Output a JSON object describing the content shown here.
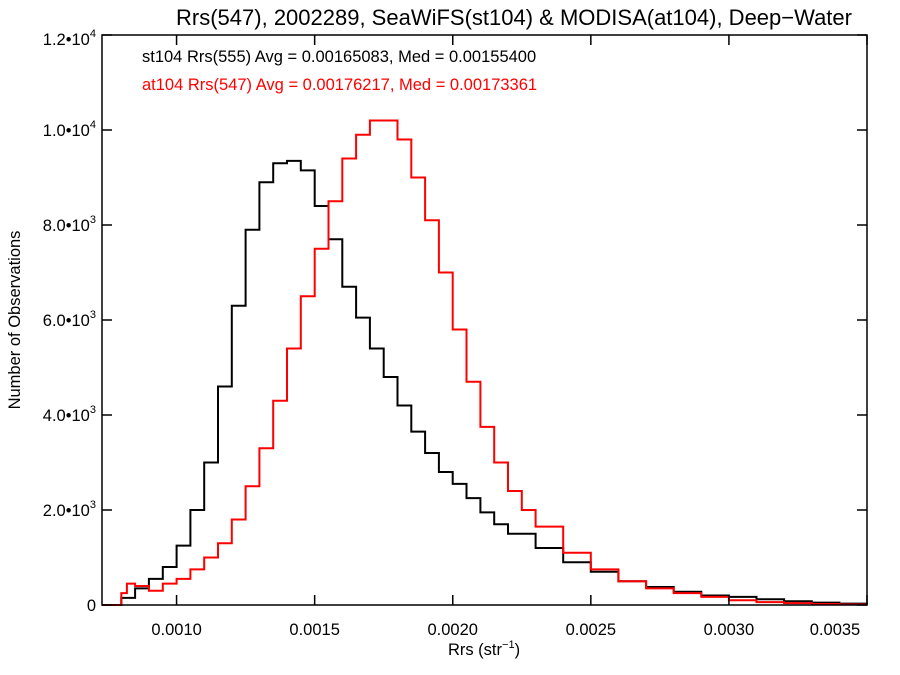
{
  "chart_data": {
    "type": "line",
    "title": "Rrs(547), 2002289, SeaWiFS(st104) & MODISA(at104), Deep−Water",
    "xlabel_main": "Rrs (str",
    "xlabel_sup": "−1",
    "xlabel_end": ")",
    "ylabel": "Number of Observations",
    "xlim": [
      0.00073,
      0.0035
    ],
    "ylim": [
      0,
      12000
    ],
    "x_ticks": [
      {
        "value": 0.001,
        "label": "0.0010"
      },
      {
        "value": 0.0015,
        "label": "0.0015"
      },
      {
        "value": 0.002,
        "label": "0.0020"
      },
      {
        "value": 0.0025,
        "label": "0.0025"
      },
      {
        "value": 0.003,
        "label": "0.0030"
      },
      {
        "value": 0.0035,
        "label": "0.0035"
      }
    ],
    "y_ticks": [
      {
        "value": 0,
        "mant": "0",
        "exp": ""
      },
      {
        "value": 2000,
        "mant": "2.0•10",
        "exp": "3"
      },
      {
        "value": 4000,
        "mant": "4.0•10",
        "exp": "3"
      },
      {
        "value": 6000,
        "mant": "6.0•10",
        "exp": "3"
      },
      {
        "value": 8000,
        "mant": "8.0•10",
        "exp": "3"
      },
      {
        "value": 10000,
        "mant": "1.0•10",
        "exp": "4"
      },
      {
        "value": 12000,
        "mant": "1.2•10",
        "exp": "4"
      }
    ],
    "grid": false,
    "legend_position": "top-left",
    "series": [
      {
        "label": "st104 Rrs(555) Avg = 0.00165083, Med = 0.00155400",
        "color": "#000000",
        "step": "histogram",
        "x": [
          0.00073,
          0.00078,
          0.0008,
          0.00085,
          0.0009,
          0.00095,
          0.001,
          0.00105,
          0.0011,
          0.00115,
          0.0012,
          0.00125,
          0.0013,
          0.00135,
          0.0014,
          0.00145,
          0.0015,
          0.00155,
          0.0016,
          0.00165,
          0.0017,
          0.00175,
          0.0018,
          0.00185,
          0.0019,
          0.00195,
          0.002,
          0.00205,
          0.0021,
          0.00215,
          0.0022,
          0.0023,
          0.0024,
          0.0025,
          0.0026,
          0.0027,
          0.0028,
          0.0029,
          0.003,
          0.0031,
          0.0032,
          0.0033,
          0.0034,
          0.0035
        ],
        "y": [
          0,
          0,
          150,
          350,
          550,
          800,
          1250,
          2000,
          3000,
          4600,
          6300,
          7900,
          8900,
          9300,
          9350,
          9150,
          8400,
          7700,
          6700,
          6050,
          5400,
          4800,
          4200,
          3650,
          3200,
          2800,
          2550,
          2250,
          1950,
          1700,
          1500,
          1200,
          900,
          700,
          500,
          380,
          280,
          200,
          170,
          120,
          80,
          50,
          30,
          20
        ]
      },
      {
        "label": "at104 Rrs(547) Avg = 0.00176217, Med = 0.00173361",
        "color": "#ff0000",
        "step": "histogram",
        "x": [
          0.00073,
          0.00078,
          0.0008,
          0.00082,
          0.00085,
          0.0009,
          0.00095,
          0.001,
          0.00105,
          0.0011,
          0.00115,
          0.0012,
          0.00125,
          0.0013,
          0.00135,
          0.0014,
          0.00145,
          0.0015,
          0.00155,
          0.0016,
          0.00165,
          0.0017,
          0.00175,
          0.0018,
          0.00185,
          0.0019,
          0.00195,
          0.002,
          0.00205,
          0.0021,
          0.00215,
          0.0022,
          0.00225,
          0.0023,
          0.0024,
          0.0025,
          0.0026,
          0.0027,
          0.0028,
          0.0029,
          0.003,
          0.0031,
          0.0032,
          0.0033,
          0.0034,
          0.0035
        ],
        "y": [
          0,
          0,
          250,
          450,
          400,
          300,
          450,
          550,
          750,
          1000,
          1300,
          1800,
          2500,
          3300,
          4300,
          5400,
          6500,
          7500,
          8500,
          9400,
          9900,
          10200,
          10200,
          9800,
          9000,
          8100,
          7000,
          5800,
          4700,
          3750,
          3000,
          2400,
          2000,
          1650,
          1100,
          750,
          500,
          350,
          250,
          170,
          100,
          60,
          40,
          20,
          10,
          10
        ]
      }
    ]
  }
}
